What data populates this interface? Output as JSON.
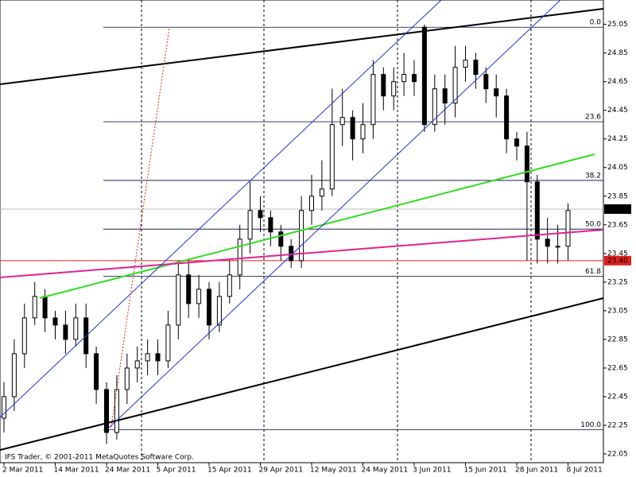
{
  "chart_data": {
    "type": "candlestick",
    "categories": [
      "2 Mar 2011",
      null,
      null,
      null,
      null,
      "14 Mar 2011",
      null,
      null,
      null,
      null,
      "24 Mar 2011",
      null,
      null,
      null,
      null,
      "5 Apr 2011",
      null,
      null,
      null,
      null,
      "15 Apr 2011",
      null,
      null,
      null,
      null,
      "29 Apr 2011",
      null,
      null,
      null,
      null,
      "12 May 2011",
      null,
      null,
      null,
      null,
      "24 May 2011",
      null,
      null,
      null,
      null,
      "3 Jun 2011",
      null,
      null,
      null,
      null,
      "15 Jun 2011",
      null,
      null,
      null,
      null,
      "28 Jun 2011",
      null,
      null,
      null,
      null,
      "8 Jul 2011"
    ],
    "open": [
      22.3,
      22.45,
      22.75,
      23.0,
      23.15,
      23.0,
      22.95,
      22.85,
      23.0,
      22.75,
      22.5,
      22.2,
      22.5,
      22.65,
      22.7,
      22.75,
      22.7,
      22.95,
      23.3,
      23.1,
      23.2,
      22.95,
      23.15,
      23.3,
      23.55,
      23.75,
      23.7,
      23.6,
      23.5,
      23.4,
      23.75,
      23.85,
      23.9,
      24.35,
      24.4,
      24.25,
      24.35,
      24.7,
      24.55,
      24.65,
      24.7,
      25.03,
      24.35,
      24.6,
      24.5,
      24.75,
      24.8,
      24.7,
      24.6,
      24.55,
      24.25,
      24.2,
      23.95,
      23.55,
      23.5,
      23.5
    ],
    "high": [
      22.55,
      22.85,
      23.1,
      23.25,
      23.2,
      23.05,
      23.05,
      23.1,
      23.1,
      22.8,
      22.55,
      22.6,
      22.75,
      22.8,
      22.85,
      22.85,
      23.05,
      23.4,
      23.4,
      23.3,
      23.25,
      23.25,
      23.4,
      23.65,
      23.95,
      23.85,
      23.75,
      23.65,
      23.55,
      23.85,
      24.0,
      24.1,
      24.6,
      24.6,
      24.45,
      24.5,
      24.8,
      24.75,
      24.75,
      24.85,
      24.8,
      25.05,
      24.7,
      24.7,
      24.9,
      24.9,
      24.85,
      24.75,
      24.7,
      24.6,
      24.3,
      24.3,
      24.0,
      23.7,
      23.65,
      23.8
    ],
    "low": [
      22.2,
      22.35,
      22.65,
      22.95,
      22.9,
      22.85,
      22.75,
      22.8,
      22.65,
      22.4,
      22.12,
      22.15,
      22.4,
      22.55,
      22.6,
      22.6,
      22.65,
      22.85,
      23.0,
      23.0,
      22.85,
      22.9,
      23.1,
      23.2,
      23.45,
      23.6,
      23.5,
      23.4,
      23.35,
      23.35,
      23.65,
      23.75,
      23.85,
      24.2,
      24.1,
      24.15,
      24.25,
      24.45,
      24.45,
      24.55,
      24.55,
      24.3,
      24.3,
      24.35,
      24.4,
      24.65,
      24.6,
      24.5,
      24.4,
      24.15,
      24.1,
      23.4,
      23.38,
      23.38,
      23.38,
      23.4
    ],
    "close": [
      22.45,
      22.75,
      23.0,
      23.15,
      23.0,
      22.95,
      22.85,
      23.0,
      22.75,
      22.5,
      22.2,
      22.5,
      22.65,
      22.7,
      22.75,
      22.7,
      22.95,
      23.3,
      23.1,
      23.2,
      22.95,
      23.15,
      23.3,
      23.55,
      23.75,
      23.7,
      23.6,
      23.5,
      23.4,
      23.75,
      23.85,
      23.9,
      24.35,
      24.4,
      24.25,
      24.35,
      24.7,
      24.55,
      24.65,
      24.7,
      24.65,
      24.35,
      24.6,
      24.5,
      24.75,
      24.8,
      24.7,
      24.6,
      24.55,
      24.25,
      24.2,
      23.95,
      23.55,
      23.5,
      23.5,
      23.75
    ],
    "up_color": "#ffffff",
    "down_color": "#000000",
    "ylim": [
      22.0,
      25.22
    ],
    "yticks": [
      25.05,
      24.85,
      24.65,
      24.45,
      24.25,
      24.05,
      23.85,
      23.65,
      23.45,
      23.25,
      23.05,
      22.85,
      22.65,
      22.45,
      22.25,
      22.05
    ],
    "fib_levels": [
      {
        "value": 25.03,
        "label": "0.0"
      },
      {
        "value": 24.37,
        "label": "23.6"
      },
      {
        "value": 23.96,
        "label": "38.2"
      },
      {
        "value": 23.62,
        "label": "50.0"
      },
      {
        "value": 23.29,
        "label": "61.8"
      },
      {
        "value": 22.22,
        "label": "100.0"
      }
    ],
    "current_price": 23.76,
    "alert_price": {
      "value": 23.4,
      "label": "23.40"
    },
    "copyright": "IFS Trader, © 2001-2011 MetaQuotes Software Corp."
  }
}
